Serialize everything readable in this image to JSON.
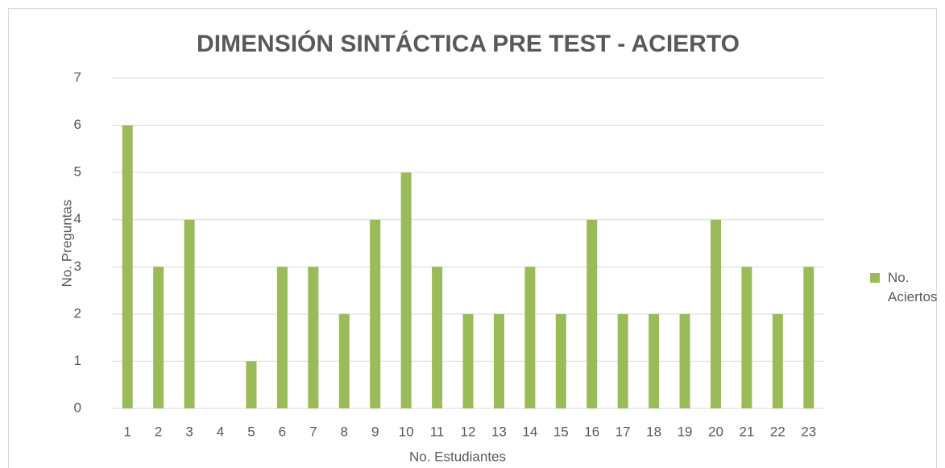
{
  "chart_data": {
    "type": "bar",
    "title": "DIMENSIÓN SINTÁCTICA PRE TEST - ACIERTO",
    "x_label": "No. Estudiantes",
    "y_label": "No. Preguntas",
    "categories": [
      "1",
      "2",
      "3",
      "4",
      "5",
      "6",
      "7",
      "8",
      "9",
      "10",
      "11",
      "12",
      "13",
      "14",
      "15",
      "16",
      "17",
      "18",
      "19",
      "20",
      "21",
      "22",
      "23"
    ],
    "series": [
      {
        "name": "No. Aciertos",
        "color": "#9bbb59",
        "values": [
          6,
          3,
          4,
          0,
          1,
          3,
          3,
          2,
          4,
          5,
          3,
          2,
          2,
          3,
          2,
          4,
          2,
          2,
          2,
          4,
          3,
          2,
          3
        ]
      }
    ],
    "ylim": [
      0,
      7
    ],
    "yticks": [
      0,
      1,
      2,
      3,
      4,
      5,
      6,
      7
    ],
    "grid": true,
    "legend": "right"
  }
}
